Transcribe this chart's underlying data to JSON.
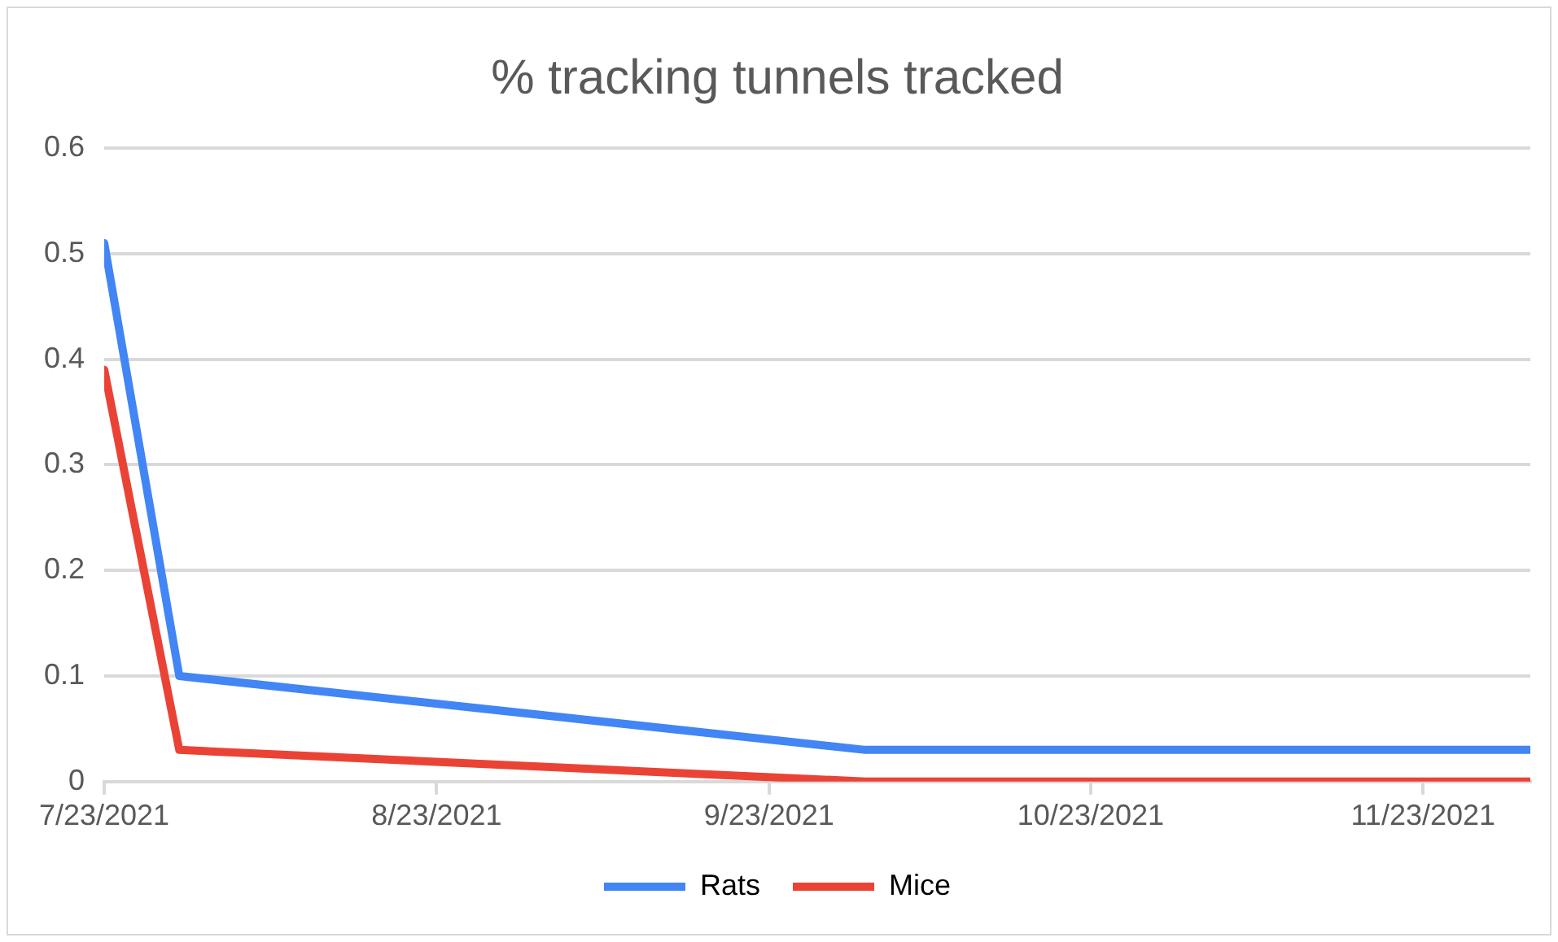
{
  "chart_data": {
    "type": "line",
    "title": "% tracking tunnels tracked",
    "x": [
      "2021-07-23",
      "2021-07-30",
      "2021-10-02",
      "2021-12-03"
    ],
    "series": [
      {
        "name": "Rats",
        "color": "#4285f4",
        "values": [
          0.51,
          0.1,
          0.03,
          0.03
        ]
      },
      {
        "name": "Mice",
        "color": "#ea4335",
        "values": [
          0.39,
          0.03,
          0,
          0
        ]
      }
    ],
    "xlim": [
      "2021-07-23",
      "2021-12-03"
    ],
    "xticks": [
      {
        "value": "2021-07-23",
        "label": "7/23/2021"
      },
      {
        "value": "2021-08-23",
        "label": "8/23/2021"
      },
      {
        "value": "2021-09-23",
        "label": "9/23/2021"
      },
      {
        "value": "2021-10-23",
        "label": "10/23/2021"
      },
      {
        "value": "2021-11-23",
        "label": "11/23/2021"
      }
    ],
    "ylim": [
      0,
      0.6
    ],
    "yticks": [
      0,
      0.1,
      0.2,
      0.3,
      0.4,
      0.5,
      0.6
    ],
    "grid": "y",
    "legend": "bottom",
    "marker": "none",
    "line_style": "solid"
  }
}
